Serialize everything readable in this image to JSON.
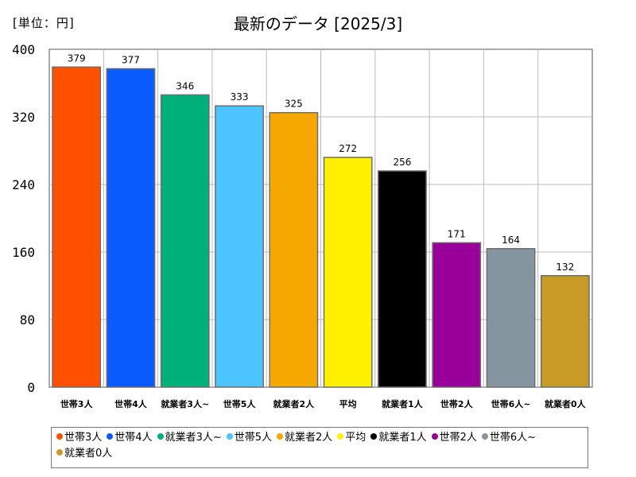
{
  "chart_data": {
    "type": "bar",
    "title": "最新のデータ [2025/3]",
    "unit_label": "[単位：円]",
    "ylim": [
      0,
      400
    ],
    "yticks": [
      0,
      80,
      160,
      240,
      320,
      400
    ],
    "grid": true,
    "legend_position": "bottom",
    "categories": [
      "世帯3人",
      "世帯4人",
      "就業者3人~",
      "世帯5人",
      "就業者2人",
      "平均",
      "就業者1人",
      "世帯2人",
      "世帯6人~",
      "就業者0人"
    ],
    "values": [
      379,
      377,
      346,
      333,
      325,
      272,
      256,
      171,
      164,
      132
    ],
    "colors": [
      "#ff5000",
      "#0a5cff",
      "#00b07a",
      "#4cc4ff",
      "#f5a800",
      "#fff000",
      "#000000",
      "#990099",
      "#8595a0",
      "#c89b26"
    ]
  }
}
